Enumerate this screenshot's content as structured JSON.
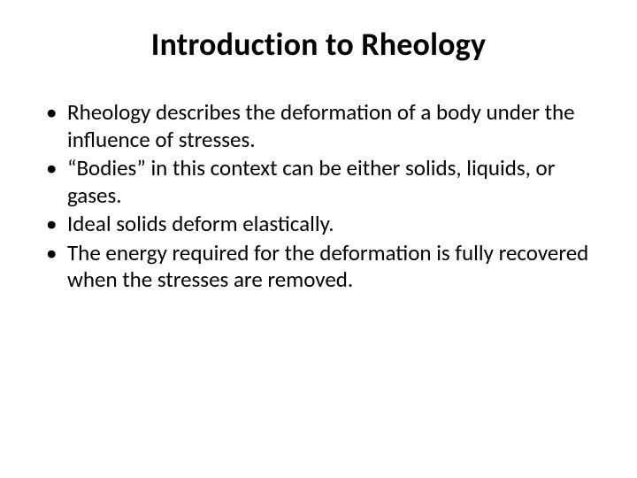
{
  "slide": {
    "title": "Introduction to Rheology",
    "bullets": [
      "Rheology describes the deformation of a body under the influence of stresses.",
      "“Bodies” in this context can be either solids, liquids, or gases.",
      "Ideal solids deform elastically.",
      "The energy required for the deformation is fully recovered when the stresses are removed."
    ],
    "colors": {
      "background": "#ffffff",
      "text": "#000000"
    },
    "typography": {
      "title_fontsize": 36,
      "title_weight": 700,
      "body_fontsize": 25,
      "font_family": "Calibri"
    }
  }
}
